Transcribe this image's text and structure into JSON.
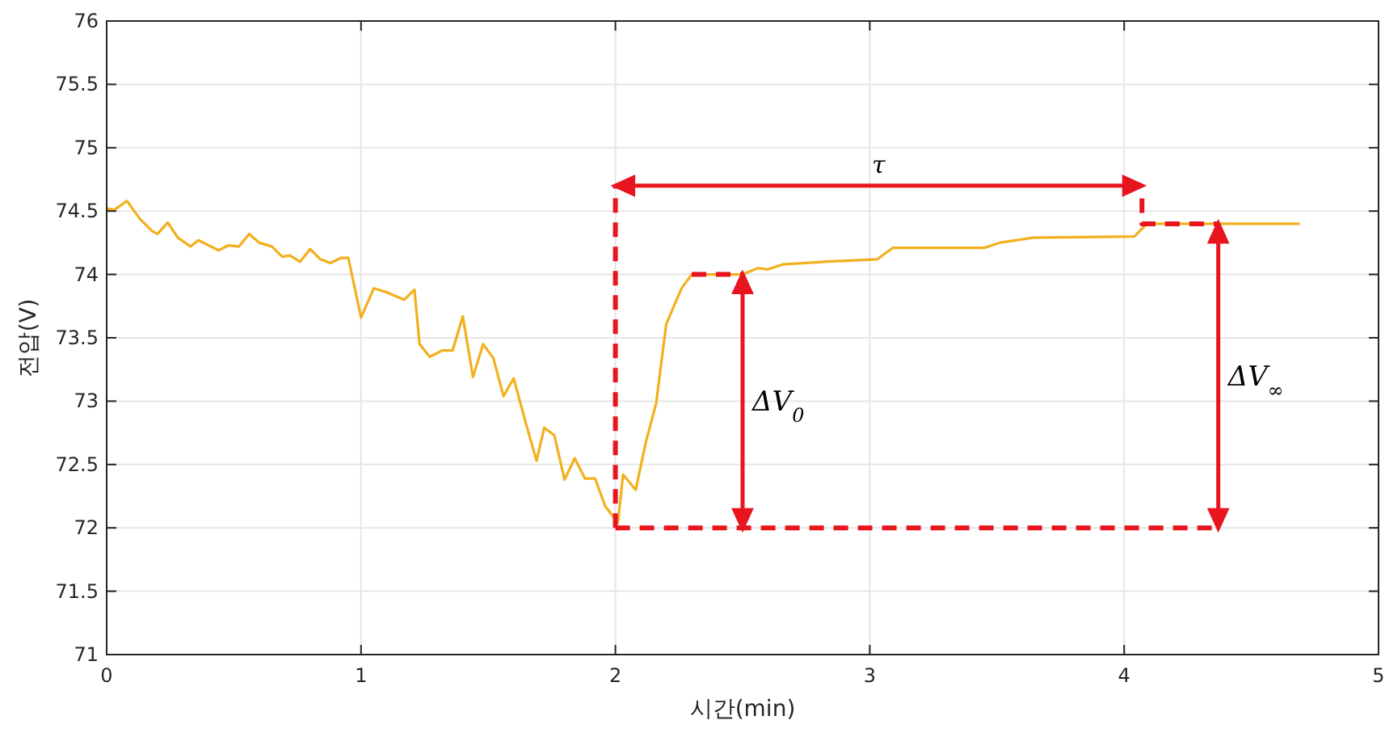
{
  "chart_data": {
    "type": "line",
    "xlabel": "시간(min)",
    "ylabel": "전압(V)",
    "xlim": [
      0,
      5
    ],
    "ylim": [
      71,
      76
    ],
    "xticks": [
      0,
      1,
      2,
      3,
      4,
      5
    ],
    "yticks": [
      71,
      71.5,
      72,
      72.5,
      73,
      73.5,
      74,
      74.5,
      75,
      75.5,
      76
    ],
    "grid": true,
    "series": [
      {
        "color": "#f2b01e",
        "x": [
          0,
          0.03,
          0.08,
          0.13,
          0.18,
          0.2,
          0.24,
          0.28,
          0.33,
          0.36,
          0.44,
          0.48,
          0.52,
          0.56,
          0.6,
          0.65,
          0.69,
          0.72,
          0.76,
          0.8,
          0.84,
          0.88,
          0.92,
          0.95,
          1.0,
          1.05,
          1.1,
          1.17,
          1.21,
          1.23,
          1.27,
          1.32,
          1.36,
          1.4,
          1.44,
          1.48,
          1.52,
          1.56,
          1.6,
          1.65,
          1.69,
          1.72,
          1.76,
          1.8,
          1.84,
          1.88,
          1.92,
          1.96,
          2.01,
          2.03,
          2.08,
          2.12,
          2.16,
          2.2,
          2.26,
          2.3,
          2.5,
          2.56,
          2.6,
          2.66,
          2.82,
          3.03,
          3.05,
          3.09,
          3.45,
          3.51,
          3.64,
          4.04,
          4.09,
          4.69
        ],
        "values": [
          74.52,
          74.51,
          74.58,
          74.44,
          74.34,
          74.32,
          74.41,
          74.29,
          74.22,
          74.27,
          74.19,
          74.23,
          74.22,
          74.32,
          74.25,
          74.22,
          74.14,
          74.15,
          74.1,
          74.2,
          74.12,
          74.09,
          74.13,
          74.13,
          73.66,
          73.89,
          73.86,
          73.8,
          73.88,
          73.45,
          73.35,
          73.4,
          73.4,
          73.67,
          73.19,
          73.45,
          73.34,
          73.04,
          73.18,
          72.81,
          72.53,
          72.79,
          72.73,
          72.38,
          72.55,
          72.39,
          72.39,
          72.17,
          72.04,
          72.42,
          72.3,
          72.68,
          72.98,
          73.61,
          73.89,
          74.0,
          74.0,
          74.05,
          74.04,
          74.08,
          74.1,
          74.12,
          74.15,
          74.21,
          74.21,
          74.25,
          74.29,
          74.3,
          74.4,
          74.4
        ]
      },
      {
        "color": "#e8141e",
        "line_style": "dashed",
        "x": [
          2,
          2
        ],
        "values": [
          72,
          74.7
        ]
      },
      {
        "color": "#e8141e",
        "line_style": "dashed",
        "x": [
          2,
          4.37
        ],
        "values": [
          72,
          72
        ]
      },
      {
        "color": "#e8141e",
        "line_style": "dashed",
        "x": [
          2.3,
          2.5
        ],
        "values": [
          74,
          74
        ]
      },
      {
        "color": "#e8141e",
        "line_style": "dashed",
        "x": [
          4.07,
          4.07,
          4.37
        ],
        "values": [
          74.6,
          74.4,
          74.4
        ]
      }
    ],
    "annotations": [
      "τ",
      "ΔV$_{0}$",
      "ΔV$_{∞}$"
    ]
  }
}
